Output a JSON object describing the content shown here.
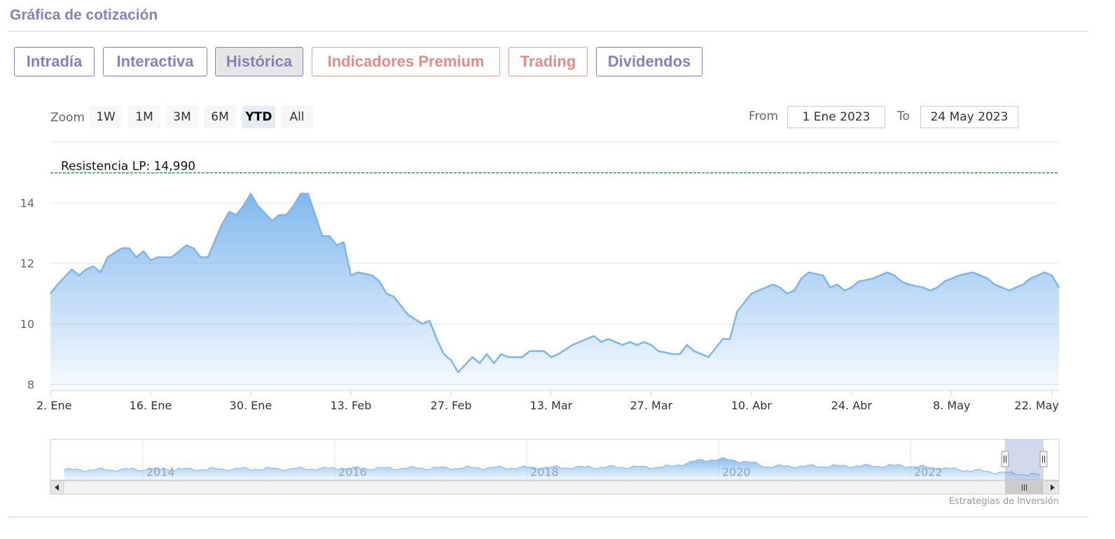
{
  "header": {
    "title": "Gráfica de cotización"
  },
  "tabs": [
    {
      "label": "Intradía",
      "active": false,
      "premium": false
    },
    {
      "label": "Interactiva",
      "active": false,
      "premium": false
    },
    {
      "label": "Histórica",
      "active": true,
      "premium": false
    },
    {
      "label": "Indicadores Premium",
      "active": false,
      "premium": true
    },
    {
      "label": "Trading",
      "active": false,
      "premium": true
    },
    {
      "label": "Dividendos",
      "active": false,
      "premium": false
    }
  ],
  "zoom": {
    "label": "Zoom",
    "buttons": [
      "1W",
      "1M",
      "3M",
      "6M",
      "YTD",
      "All"
    ],
    "selected": "YTD"
  },
  "range": {
    "from_label": "From",
    "from_value": "1 Ene 2023",
    "to_label": "To",
    "to_value": "24 May 2023"
  },
  "credits": "Estrategias de Inversión",
  "colors": {
    "accent": "#8a7fb7",
    "premium": "#e08f86",
    "series_line": "#7cb5ec",
    "resistance_line": "#2e7d32"
  },
  "chart_data": {
    "type": "area",
    "title": "",
    "xlabel": "",
    "ylabel": "",
    "ylim": [
      7.8,
      16
    ],
    "yticks": [
      8,
      10,
      12,
      14
    ],
    "grid": true,
    "x_tick_labels": [
      {
        "day": 0,
        "label": "2. Ene"
      },
      {
        "day": 14,
        "label": "16. Ene"
      },
      {
        "day": 28,
        "label": "30. Ene"
      },
      {
        "day": 42,
        "label": "13. Feb"
      },
      {
        "day": 56,
        "label": "27. Feb"
      },
      {
        "day": 70,
        "label": "13. Mar"
      },
      {
        "day": 84,
        "label": "27. Mar"
      },
      {
        "day": 98,
        "label": "10. Abr"
      },
      {
        "day": 112,
        "label": "24. Abr"
      },
      {
        "day": 126,
        "label": "8. May"
      },
      {
        "day": 140,
        "label": "22. May"
      }
    ],
    "resistance": {
      "label": "Resistencia LP: 14,990",
      "value": 14.99
    },
    "x": [
      0,
      1,
      3,
      4,
      5,
      6,
      7,
      8,
      10,
      11,
      12,
      13,
      14,
      15,
      17,
      18,
      19,
      20,
      21,
      22,
      24,
      25,
      26,
      27,
      28,
      29,
      31,
      32,
      33,
      34,
      35,
      36,
      38,
      39,
      40,
      41,
      42,
      43,
      45,
      46,
      47,
      48,
      49,
      50,
      52,
      53,
      54,
      55,
      56,
      57,
      59,
      60,
      61,
      62,
      63,
      64,
      66,
      67,
      68,
      69,
      70,
      71,
      73,
      74,
      75,
      76,
      77,
      78,
      80,
      81,
      82,
      83,
      84,
      85,
      87,
      88,
      89,
      90,
      91,
      92,
      94,
      95,
      96,
      97,
      98,
      99,
      101,
      102,
      103,
      104,
      105,
      106,
      108,
      109,
      110,
      111,
      112,
      113,
      115,
      116,
      117,
      118,
      119,
      120,
      122,
      123,
      124,
      125,
      126,
      127,
      129,
      130,
      131,
      132,
      133,
      134,
      136,
      137,
      138,
      139,
      140,
      141
    ],
    "values": [
      11.0,
      11.3,
      11.8,
      11.6,
      11.8,
      11.9,
      11.7,
      12.2,
      12.5,
      12.5,
      12.2,
      12.4,
      12.1,
      12.2,
      12.2,
      12.4,
      12.6,
      12.5,
      12.2,
      12.2,
      13.3,
      13.7,
      13.6,
      13.9,
      14.3,
      13.9,
      13.4,
      13.6,
      13.6,
      13.9,
      14.3,
      14.3,
      12.9,
      12.9,
      12.6,
      12.7,
      11.6,
      11.7,
      11.6,
      11.4,
      11.0,
      10.9,
      10.6,
      10.3,
      10.0,
      10.1,
      9.5,
      9.0,
      8.8,
      8.4,
      8.9,
      8.7,
      9.0,
      8.7,
      9.0,
      8.9,
      8.9,
      9.1,
      9.1,
      9.1,
      8.9,
      9.0,
      9.3,
      9.4,
      9.5,
      9.6,
      9.4,
      9.5,
      9.3,
      9.4,
      9.3,
      9.4,
      9.3,
      9.1,
      9.0,
      9.0,
      9.3,
      9.1,
      9.0,
      8.9,
      9.5,
      9.5,
      10.4,
      10.7,
      11.0,
      11.1,
      11.3,
      11.2,
      11.0,
      11.1,
      11.5,
      11.7,
      11.6,
      11.2,
      11.3,
      11.1,
      11.2,
      11.4,
      11.5,
      11.6,
      11.7,
      11.6,
      11.4,
      11.3,
      11.2,
      11.1,
      11.2,
      11.4,
      11.5,
      11.6,
      11.7,
      11.6,
      11.5,
      11.3,
      11.2,
      11.1,
      11.3,
      11.5,
      11.6,
      11.7,
      11.6,
      11.2
    ],
    "navigator": {
      "year_labels": [
        "2014",
        "2016",
        "2018",
        "2020",
        "2022"
      ]
    }
  }
}
